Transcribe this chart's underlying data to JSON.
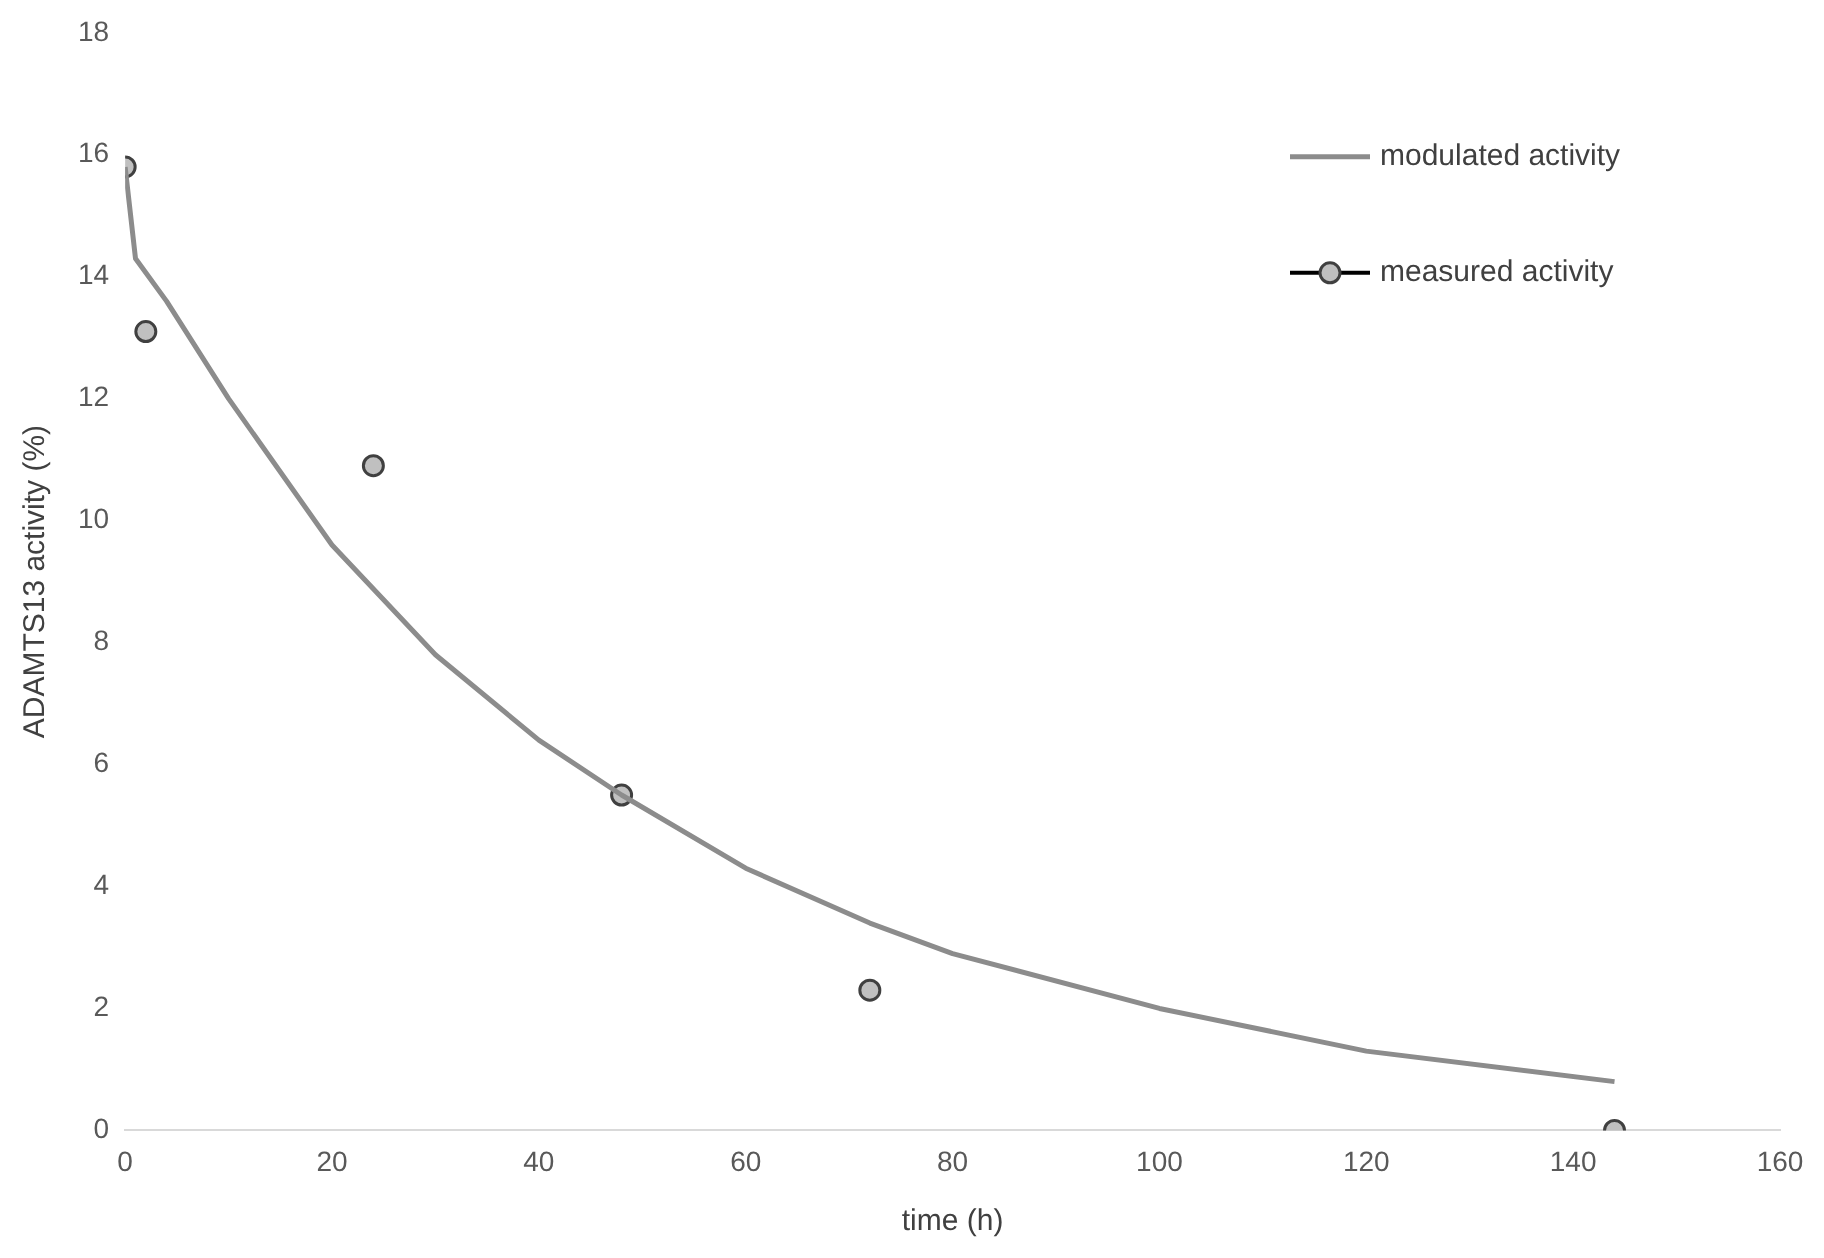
{
  "chart_data": {
    "type": "line",
    "xlabel": "time (h)",
    "ylabel": "ADAMTS13 activity (%)",
    "xlim": [
      0,
      160
    ],
    "xticks": [
      0,
      20,
      40,
      60,
      80,
      100,
      120,
      140,
      160
    ],
    "ylim": [
      0,
      18
    ],
    "yticks": [
      0,
      2,
      4,
      6,
      8,
      10,
      12,
      14,
      16,
      18
    ],
    "grid": false,
    "legend": "top right",
    "series": [
      {
        "name": "modulated activity",
        "type": "line",
        "color": "#8c8c8c",
        "marker": "none",
        "x": [
          0,
          1,
          4,
          10,
          20,
          30,
          40,
          48,
          60,
          72,
          80,
          100,
          120,
          144
        ],
        "values": [
          15.8,
          14.3,
          13.6,
          12.0,
          9.6,
          7.8,
          6.4,
          5.5,
          4.3,
          3.4,
          2.9,
          2.0,
          1.3,
          0.8
        ]
      },
      {
        "name": "measured activity",
        "type": "scatter",
        "color": "#c0c0c0",
        "marker": "circle",
        "x": [
          0,
          2,
          24,
          48,
          72,
          144
        ],
        "values": [
          15.8,
          13.1,
          10.9,
          5.5,
          2.3,
          0
        ]
      }
    ]
  }
}
